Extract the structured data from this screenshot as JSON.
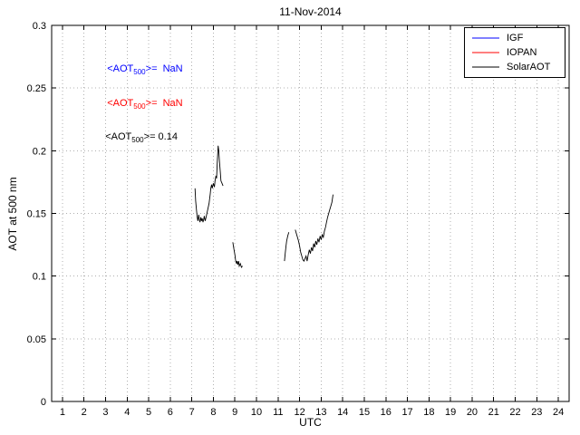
{
  "figure": {
    "title": "11-Nov-2014",
    "xlabel": "UTC",
    "ylabel": "AOT at 500 nm"
  },
  "legend": {
    "items": [
      {
        "label": "IGF",
        "color": "#0000ff"
      },
      {
        "label": "IOPAN",
        "color": "#ff0000"
      },
      {
        "label": "SolarAOT",
        "color": "#000000"
      }
    ]
  },
  "annotations": [
    {
      "prefix": "<AOT",
      "sub": "500",
      "suffix": ">=  NaN",
      "color": "#0000ff"
    },
    {
      "prefix": "<AOT",
      "sub": "500",
      "suffix": ">=  NaN",
      "color": "#ff0000"
    },
    {
      "prefix": "<AOT",
      "sub": "500",
      "suffix": ">= 0.14",
      "color": "#000000"
    }
  ],
  "chart_data": {
    "type": "line",
    "title": "11-Nov-2014",
    "xlabel": "UTC",
    "ylabel": "AOT at 500 nm",
    "xlim": [
      0.5,
      24.5
    ],
    "ylim": [
      0,
      0.3
    ],
    "xticks": [
      1,
      2,
      3,
      4,
      5,
      6,
      7,
      8,
      9,
      10,
      11,
      12,
      13,
      14,
      15,
      16,
      17,
      18,
      19,
      20,
      21,
      22,
      23,
      24
    ],
    "yticks": [
      {
        "v": 0,
        "label": "0"
      },
      {
        "v": 0.05,
        "label": "0.05"
      },
      {
        "v": 0.1,
        "label": "0.1"
      },
      {
        "v": 0.15,
        "label": "0.15"
      },
      {
        "v": 0.2,
        "label": "0.2"
      },
      {
        "v": 0.25,
        "label": "0.25"
      },
      {
        "v": 0.3,
        "label": "0.3"
      }
    ],
    "grid": true,
    "legend_position": "top-right",
    "series": [
      {
        "name": "IGF",
        "color": "#0000ff",
        "mean_aot_500": "NaN",
        "segments": []
      },
      {
        "name": "IOPAN",
        "color": "#ff0000",
        "mean_aot_500": "NaN",
        "segments": []
      },
      {
        "name": "SolarAOT",
        "color": "#000000",
        "mean_aot_500": "0.14",
        "segments": [
          [
            [
              7.15,
              0.17
            ],
            [
              7.18,
              0.16
            ],
            [
              7.22,
              0.152
            ],
            [
              7.25,
              0.147
            ],
            [
              7.28,
              0.144
            ],
            [
              7.32,
              0.149
            ],
            [
              7.35,
              0.145
            ],
            [
              7.38,
              0.143
            ],
            [
              7.42,
              0.147
            ],
            [
              7.45,
              0.144
            ],
            [
              7.48,
              0.146
            ],
            [
              7.52,
              0.143
            ],
            [
              7.55,
              0.145
            ],
            [
              7.58,
              0.148
            ],
            [
              7.62,
              0.144
            ],
            [
              7.65,
              0.146
            ],
            [
              7.7,
              0.15
            ],
            [
              7.75,
              0.154
            ],
            [
              7.8,
              0.158
            ],
            [
              7.85,
              0.165
            ],
            [
              7.88,
              0.17
            ],
            [
              7.92,
              0.173
            ],
            [
              7.95,
              0.17
            ],
            [
              8.0,
              0.174
            ],
            [
              8.05,
              0.171
            ],
            [
              8.08,
              0.176
            ],
            [
              8.12,
              0.18
            ],
            [
              8.15,
              0.178
            ],
            [
              8.18,
              0.19
            ],
            [
              8.22,
              0.204
            ],
            [
              8.25,
              0.2
            ],
            [
              8.28,
              0.192
            ],
            [
              8.32,
              0.183
            ],
            [
              8.35,
              0.176
            ],
            [
              8.4,
              0.174
            ],
            [
              8.45,
              0.172
            ]
          ],
          [
            [
              8.9,
              0.127
            ],
            [
              8.95,
              0.122
            ],
            [
              9.0,
              0.117
            ],
            [
              9.03,
              0.113
            ],
            [
              9.07,
              0.11
            ],
            [
              9.1,
              0.112
            ],
            [
              9.13,
              0.109
            ],
            [
              9.17,
              0.112
            ],
            [
              9.2,
              0.108
            ],
            [
              9.25,
              0.11
            ],
            [
              9.3,
              0.107
            ],
            [
              9.35,
              0.108
            ]
          ],
          [
            [
              11.3,
              0.112
            ],
            [
              11.33,
              0.118
            ],
            [
              11.37,
              0.124
            ],
            [
              11.4,
              0.128
            ],
            [
              11.45,
              0.132
            ],
            [
              11.5,
              0.135
            ]
          ],
          [
            [
              11.8,
              0.137
            ],
            [
              11.85,
              0.134
            ],
            [
              11.9,
              0.131
            ],
            [
              11.95,
              0.128
            ],
            [
              12.0,
              0.124
            ],
            [
              12.05,
              0.119
            ],
            [
              12.1,
              0.116
            ],
            [
              12.15,
              0.113
            ],
            [
              12.2,
              0.112
            ],
            [
              12.25,
              0.114
            ],
            [
              12.3,
              0.116
            ],
            [
              12.35,
              0.112
            ],
            [
              12.4,
              0.117
            ],
            [
              12.45,
              0.121
            ],
            [
              12.5,
              0.118
            ],
            [
              12.55,
              0.123
            ],
            [
              12.6,
              0.12
            ],
            [
              12.65,
              0.126
            ],
            [
              12.7,
              0.123
            ],
            [
              12.75,
              0.128
            ],
            [
              12.8,
              0.125
            ],
            [
              12.85,
              0.13
            ],
            [
              12.9,
              0.127
            ],
            [
              12.95,
              0.132
            ],
            [
              13.0,
              0.129
            ],
            [
              13.05,
              0.133
            ],
            [
              13.1,
              0.131
            ],
            [
              13.15,
              0.136
            ],
            [
              13.2,
              0.139
            ],
            [
              13.25,
              0.143
            ],
            [
              13.3,
              0.147
            ],
            [
              13.35,
              0.15
            ],
            [
              13.4,
              0.153
            ],
            [
              13.45,
              0.156
            ],
            [
              13.5,
              0.159
            ],
            [
              13.55,
              0.165
            ]
          ]
        ]
      }
    ]
  }
}
